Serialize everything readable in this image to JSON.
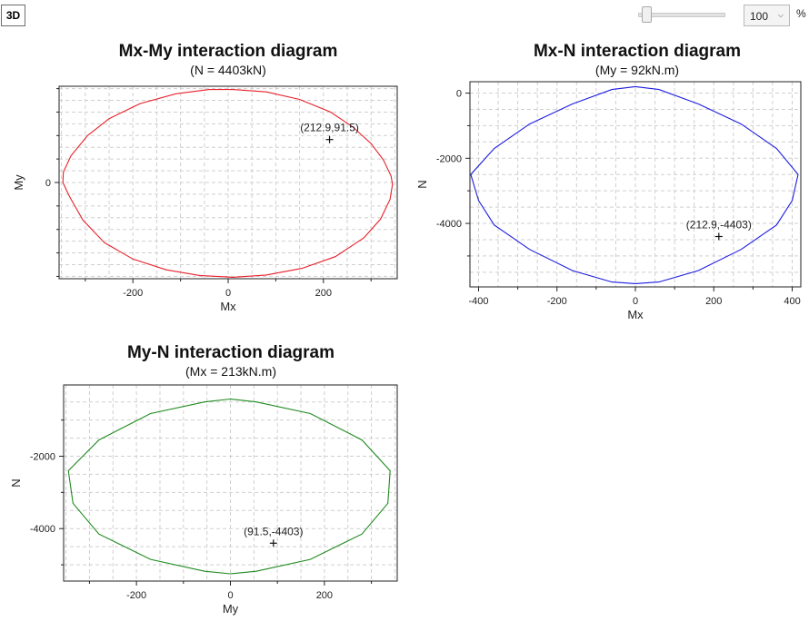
{
  "toolbar": {
    "view_3d_label": "3D",
    "zoom_value": "100",
    "zoom_unit": "%",
    "zoom_slider_fraction": 0.05,
    "zoom_options": [
      "100"
    ]
  },
  "icons": {
    "dropdown": "chevron-down-icon",
    "marker": "plus-marker-icon"
  },
  "chart_data": [
    {
      "type": "line",
      "title": "Mx-My interaction diagram",
      "subtitle": "(N = 4403kN)",
      "xlabel": "Mx",
      "ylabel": "My",
      "xlim": [
        -355,
        355
      ],
      "ylim": [
        -205,
        205
      ],
      "xticks": [
        -200,
        0,
        200
      ],
      "yticks": [
        0
      ],
      "grid": true,
      "color": "#e8202a",
      "series": [
        {
          "x": [
            10,
            80,
            150,
            215,
            262,
            300,
            326,
            342,
            345,
            340,
            320,
            285,
            225,
            155,
            80,
            10,
            -60,
            -130,
            -200,
            -260,
            -305,
            -333,
            -347,
            -346,
            -330,
            -295,
            -250,
            -185,
            -110,
            -40,
            10
          ],
          "y": [
            198,
            193,
            177,
            150,
            118,
            83,
            48,
            14,
            -4,
            -36,
            -78,
            -118,
            -158,
            -183,
            -197,
            -202,
            -198,
            -186,
            -163,
            -128,
            -80,
            -30,
            0,
            22,
            57,
            100,
            136,
            168,
            189,
            198,
            198
          ]
        }
      ],
      "points": [
        {
          "x": 212.9,
          "y": 91.5,
          "label": "(212.9,91.5)"
        }
      ]
    },
    {
      "type": "line",
      "title": "Mx-N interaction diagram",
      "subtitle": "(My = 92kN.m)",
      "xlabel": "Mx",
      "ylabel": "N",
      "xlim": [
        -422,
        422
      ],
      "ylim": [
        -5950,
        350
      ],
      "xticks": [
        -400,
        -200,
        0,
        200,
        400
      ],
      "yticks": [
        0,
        -2000,
        -4000
      ],
      "grid": true,
      "color": "#1c1ce0",
      "series": [
        {
          "x": [
            0,
            60,
            160,
            270,
            360,
            415,
            400,
            360,
            270,
            160,
            60,
            0,
            -60,
            -160,
            -270,
            -360,
            -400,
            -420,
            -360,
            -270,
            -160,
            -60,
            0
          ],
          "y": [
            200,
            110,
            -330,
            -950,
            -1700,
            -2500,
            -3300,
            -4050,
            -4800,
            -5450,
            -5800,
            -5850,
            -5800,
            -5450,
            -4800,
            -4050,
            -3300,
            -2500,
            -1700,
            -950,
            -330,
            110,
            200
          ]
        }
      ],
      "points": [
        {
          "x": 212.9,
          "y": -4403,
          "label": "(212.9,-4403)"
        }
      ]
    },
    {
      "type": "line",
      "title": "My-N interaction diagram",
      "subtitle": "(Mx = 213kN.m)",
      "xlabel": "My",
      "ylabel": "N",
      "xlim": [
        -355,
        355
      ],
      "ylim": [
        -5450,
        -30
      ],
      "xticks": [
        -200,
        0,
        200
      ],
      "yticks": [
        -2000,
        -4000
      ],
      "grid": true,
      "color": "#1f8a1f",
      "series": [
        {
          "x": [
            0,
            55,
            170,
            280,
            340,
            335,
            280,
            170,
            55,
            0,
            -55,
            -170,
            -280,
            -335,
            -345,
            -280,
            -170,
            -55,
            0
          ],
          "y": [
            -420,
            -500,
            -820,
            -1550,
            -2400,
            -3300,
            -4150,
            -4850,
            -5180,
            -5250,
            -5180,
            -4850,
            -4150,
            -3300,
            -2400,
            -1550,
            -820,
            -500,
            -420
          ]
        }
      ],
      "points": [
        {
          "x": 91.5,
          "y": -4403,
          "label": "(91.5,-4403)"
        }
      ]
    }
  ]
}
